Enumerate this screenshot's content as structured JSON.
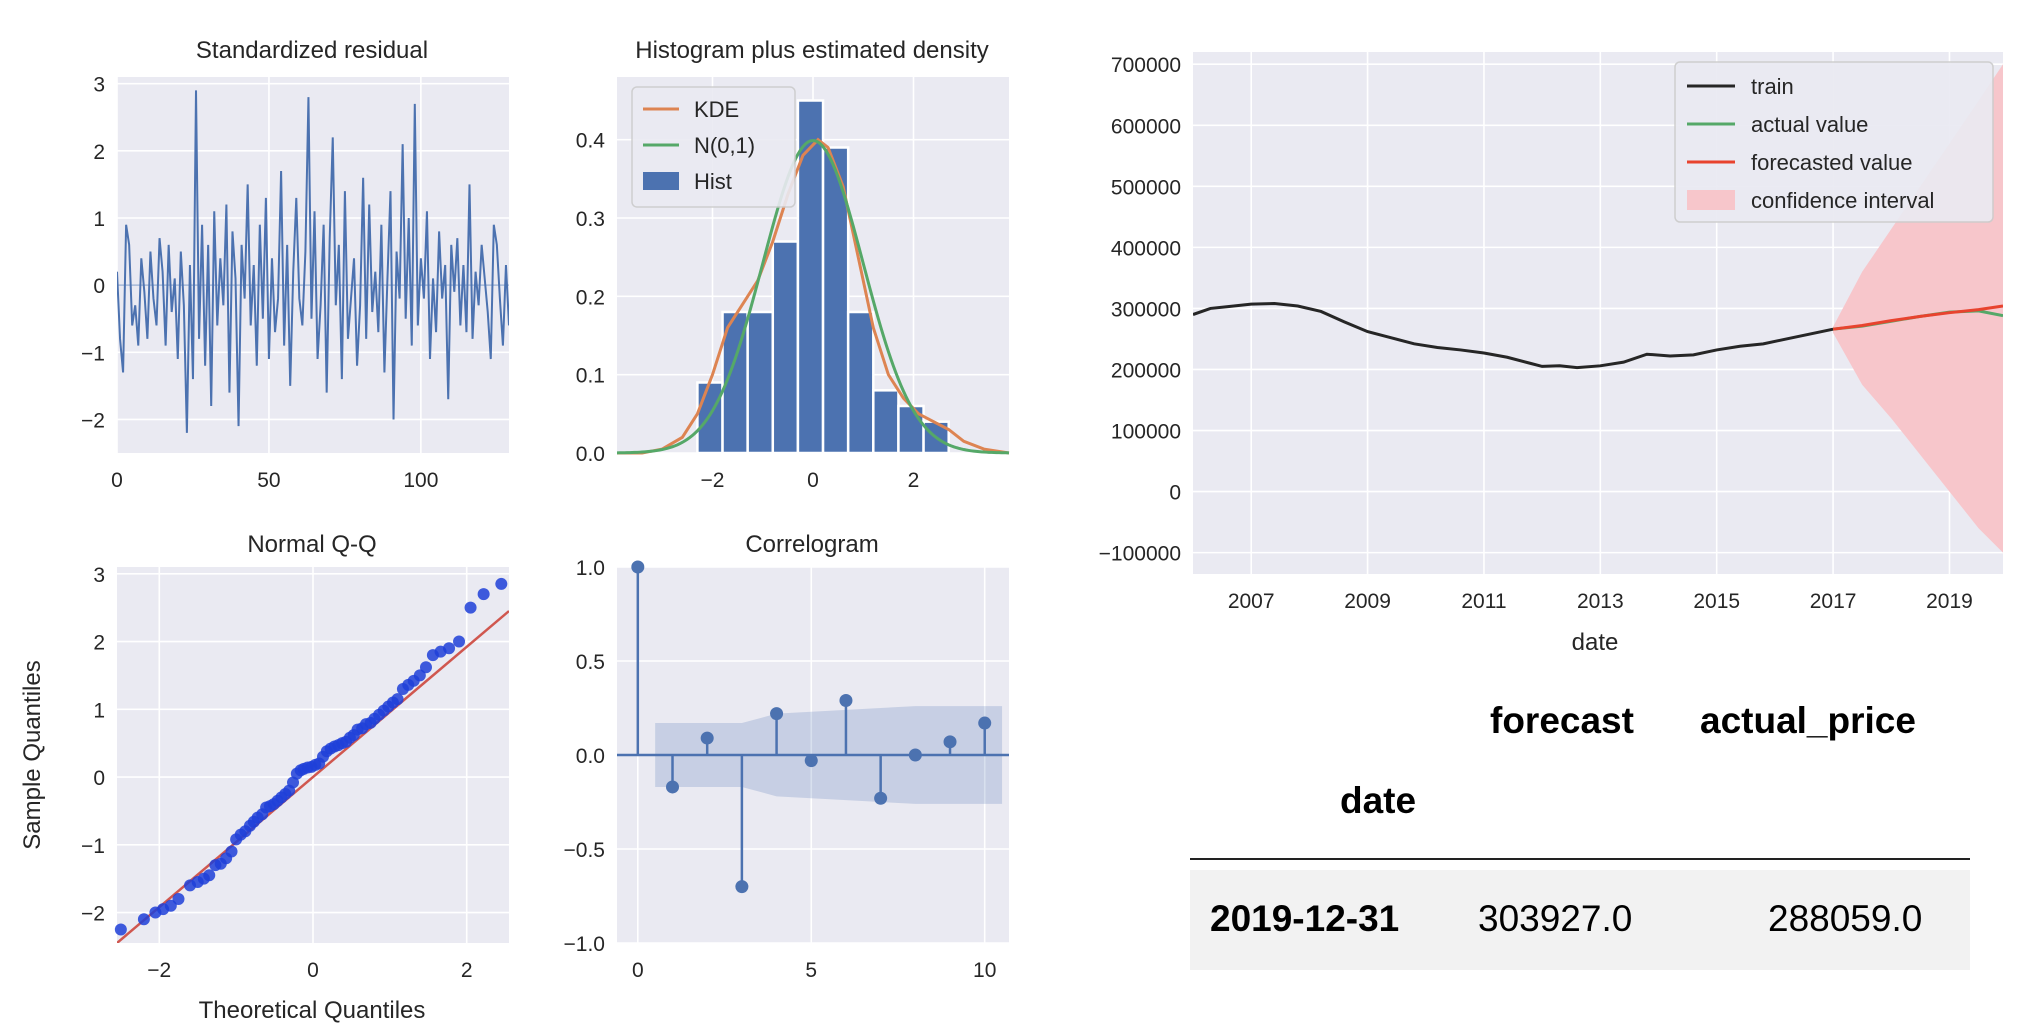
{
  "colors": {
    "panel_bg": "#eaeaf2",
    "grid": "#ffffff",
    "tick_text": "#262626",
    "blue": "#4c72b0",
    "orange": "#dd8452",
    "green": "#55a868",
    "red": "#c44e52",
    "train": "#262626",
    "actual": "#55a868",
    "forecast": "#e8432e",
    "ci": "#f7c6cb",
    "qq_points": "#1f3fd8",
    "qq_line": "#d0574f"
  },
  "chart_data": [
    {
      "id": "standardized-residual",
      "type": "line",
      "title": "Standardized residual",
      "xlim": [
        0,
        129
      ],
      "ylim": [
        -2.5,
        3.1
      ],
      "xticks": [
        "0",
        "50",
        "100"
      ],
      "yticks": [
        "−2",
        "−1",
        "0",
        "1",
        "2",
        "3"
      ],
      "series": [
        {
          "x": [
            0,
            1,
            2,
            3,
            4,
            5,
            6,
            7,
            8,
            9,
            10,
            11,
            12,
            13,
            14,
            15,
            16,
            17,
            18,
            19,
            20,
            21,
            22,
            23,
            24,
            25,
            26,
            27,
            28,
            29,
            30,
            31,
            32,
            33,
            34,
            35,
            36,
            37,
            38,
            39,
            40,
            41,
            42,
            43,
            44,
            45,
            46,
            47,
            48,
            49,
            50,
            51,
            52,
            53,
            54,
            55,
            56,
            57,
            58,
            59,
            60,
            61,
            62,
            63,
            64,
            65,
            66,
            67,
            68,
            69,
            70,
            71,
            72,
            73,
            74,
            75,
            76,
            77,
            78,
            79,
            80,
            81,
            82,
            83,
            84,
            85,
            86,
            87,
            88,
            89,
            90,
            91,
            92,
            93,
            94,
            95,
            96,
            97,
            98,
            99,
            100,
            101,
            102,
            103,
            104,
            105,
            106,
            107,
            108,
            109,
            110,
            111,
            112,
            113,
            114,
            115,
            116,
            117,
            118,
            119,
            120,
            121,
            122,
            123,
            124,
            125,
            126,
            127,
            128,
            129
          ],
          "y": [
            0.2,
            -0.8,
            -1.3,
            0.9,
            0.6,
            -0.6,
            -0.3,
            -0.9,
            0.4,
            -0.1,
            -0.8,
            0.5,
            -0.2,
            -0.6,
            0.7,
            0.2,
            -0.9,
            0.6,
            -0.4,
            0.1,
            -1.1,
            0.5,
            -0.3,
            -2.2,
            0.3,
            -1.4,
            2.9,
            -0.8,
            0.9,
            -1.2,
            0.6,
            -1.8,
            1.1,
            -0.6,
            0.4,
            -0.3,
            1.2,
            -1.6,
            0.8,
            0.1,
            -2.1,
            0.6,
            -0.2,
            1.5,
            -0.6,
            0.3,
            -1.2,
            0.9,
            -0.5,
            1.3,
            -1.1,
            0.4,
            -0.7,
            -0.2,
            1.7,
            -0.9,
            0.6,
            -1.5,
            0.2,
            1.3,
            -0.2,
            -0.6,
            0.5,
            2.8,
            -0.5,
            1.1,
            -1.1,
            -0.3,
            0.9,
            -1.6,
            0.7,
            2.2,
            -0.3,
            0.6,
            -1.4,
            1.4,
            -0.8,
            -0.2,
            0.4,
            -1.2,
            -0.3,
            1.6,
            -0.8,
            1.2,
            -0.4,
            0.2,
            -0.7,
            0.9,
            -1.3,
            0.1,
            1.4,
            -2.0,
            0.5,
            -0.2,
            2.1,
            -0.5,
            1.0,
            -0.9,
            2.7,
            -0.6,
            0.4,
            -0.2,
            1.1,
            -1.1,
            0.1,
            -0.7,
            0.8,
            -0.2,
            0.3,
            -1.7,
            0.6,
            -0.1,
            0.7,
            -0.6,
            0.3,
            -0.7,
            1.5,
            -0.8,
            0.2,
            -0.3,
            0.6,
            0.1,
            -0.4,
            -1.1,
            0.9,
            0.6,
            -0.2,
            -0.9,
            0.3,
            -0.6
          ]
        }
      ]
    },
    {
      "id": "histogram-density",
      "type": "bar",
      "title": "Histogram plus estimated density",
      "xlim": [
        -3.9,
        3.9
      ],
      "ylim": [
        0,
        0.48
      ],
      "xticks": [
        "−2",
        "0",
        "2"
      ],
      "yticks": [
        "0.0",
        "0.1",
        "0.2",
        "0.3",
        "0.4"
      ],
      "bins": [
        {
          "x0": -2.3,
          "x1": -1.8,
          "value": 0.09
        },
        {
          "x0": -1.8,
          "x1": -1.3,
          "value": 0.18
        },
        {
          "x0": -1.3,
          "x1": -0.8,
          "value": 0.18
        },
        {
          "x0": -0.8,
          "x1": -0.3,
          "value": 0.27
        },
        {
          "x0": -0.3,
          "x1": 0.2,
          "value": 0.45
        },
        {
          "x0": 0.2,
          "x1": 0.7,
          "value": 0.39
        },
        {
          "x0": 0.7,
          "x1": 1.2,
          "value": 0.18
        },
        {
          "x0": 1.2,
          "x1": 1.7,
          "value": 0.08
        },
        {
          "x0": 1.7,
          "x1": 2.2,
          "value": 0.06
        },
        {
          "x0": 2.2,
          "x1": 2.7,
          "value": 0.04
        }
      ],
      "kde": {
        "x": [
          -3.9,
          -3.4,
          -3.0,
          -2.6,
          -2.3,
          -2.0,
          -1.7,
          -1.4,
          -1.1,
          -0.8,
          -0.5,
          -0.2,
          0.1,
          0.3,
          0.6,
          0.9,
          1.2,
          1.5,
          1.8,
          2.1,
          2.4,
          2.7,
          3.0,
          3.4,
          3.9
        ],
        "y": [
          0.0,
          0.0,
          0.005,
          0.02,
          0.05,
          0.1,
          0.16,
          0.19,
          0.22,
          0.27,
          0.33,
          0.38,
          0.4,
          0.39,
          0.34,
          0.25,
          0.16,
          0.1,
          0.07,
          0.05,
          0.04,
          0.03,
          0.015,
          0.005,
          0.0
        ]
      },
      "normal": {
        "mean": 0,
        "sd": 1
      },
      "legend": [
        {
          "label": "KDE",
          "kind": "line",
          "color": "#dd8452"
        },
        {
          "label": "N(0,1)",
          "kind": "line",
          "color": "#55a868"
        },
        {
          "label": "Hist",
          "kind": "patch",
          "color": "#4c72b0"
        }
      ]
    },
    {
      "id": "normal-qq",
      "type": "scatter",
      "title": "Normal Q-Q",
      "xlabel": "Theoretical Quantiles",
      "ylabel": "Sample Quantiles",
      "xlim": [
        -2.55,
        2.55
      ],
      "ylim": [
        -2.45,
        3.1
      ],
      "xticks": [
        "−2",
        "0",
        "2"
      ],
      "yticks": [
        "−2",
        "−1",
        "0",
        "1",
        "2",
        "3"
      ],
      "line": {
        "x": [
          -2.55,
          2.55
        ],
        "y": [
          -2.45,
          2.45
        ]
      },
      "points_x": [
        -2.5,
        -2.2,
        -2.05,
        -1.95,
        -1.85,
        -1.75,
        -1.6,
        -1.5,
        -1.42,
        -1.35,
        -1.27,
        -1.2,
        -1.13,
        -1.06,
        -1.0,
        -0.94,
        -0.88,
        -0.82,
        -0.77,
        -0.72,
        -0.66,
        -0.61,
        -0.56,
        -0.51,
        -0.46,
        -0.41,
        -0.36,
        -0.31,
        -0.26,
        -0.21,
        -0.16,
        -0.12,
        -0.07,
        -0.02,
        0.03,
        0.08,
        0.13,
        0.18,
        0.23,
        0.28,
        0.33,
        0.38,
        0.43,
        0.48,
        0.53,
        0.58,
        0.64,
        0.69,
        0.75,
        0.8,
        0.86,
        0.92,
        0.98,
        1.04,
        1.1,
        1.17,
        1.24,
        1.31,
        1.39,
        1.47,
        1.56,
        1.66,
        1.77,
        1.9,
        2.05,
        2.22,
        2.45
      ],
      "points_y": [
        -2.25,
        -2.1,
        -2.0,
        -1.95,
        -1.9,
        -1.8,
        -1.6,
        -1.55,
        -1.5,
        -1.45,
        -1.3,
        -1.28,
        -1.2,
        -1.1,
        -0.92,
        -0.85,
        -0.8,
        -0.72,
        -0.66,
        -0.6,
        -0.55,
        -0.45,
        -0.43,
        -0.4,
        -0.35,
        -0.3,
        -0.25,
        -0.2,
        -0.08,
        0.05,
        0.1,
        0.12,
        0.14,
        0.15,
        0.18,
        0.2,
        0.3,
        0.38,
        0.42,
        0.45,
        0.47,
        0.5,
        0.52,
        0.58,
        0.62,
        0.7,
        0.72,
        0.78,
        0.8,
        0.86,
        0.92,
        0.98,
        1.04,
        1.1,
        1.15,
        1.3,
        1.36,
        1.42,
        1.5,
        1.62,
        1.8,
        1.85,
        1.9,
        2.0,
        2.5,
        2.7,
        2.85
      ]
    },
    {
      "id": "correlogram",
      "type": "bar",
      "title": "Correlogram",
      "xlim": [
        -0.6,
        10.7
      ],
      "ylim": [
        -1.0,
        1.0
      ],
      "xticks": [
        "0",
        "5",
        "10"
      ],
      "yticks": [
        "−1.0",
        "−0.5",
        "0.0",
        "0.5",
        "1.0"
      ],
      "lags": [
        0,
        1,
        2,
        3,
        4,
        5,
        6,
        7,
        8,
        9,
        10
      ],
      "values": [
        1.0,
        -0.17,
        0.09,
        -0.7,
        0.22,
        -0.03,
        0.29,
        -0.23,
        0.0,
        0.07,
        0.17
      ],
      "band": {
        "lags": [
          0.5,
          1,
          2,
          3,
          4,
          5,
          6,
          7,
          8,
          9,
          10,
          10.5
        ],
        "upper": [
          0.17,
          0.17,
          0.17,
          0.17,
          0.22,
          0.23,
          0.24,
          0.25,
          0.26,
          0.26,
          0.26,
          0.26
        ]
      }
    },
    {
      "id": "price-forecast",
      "type": "line",
      "xlabel": "date",
      "xlim": [
        2006.0,
        2019.92
      ],
      "ylim": [
        -135000,
        720000
      ],
      "xticks": [
        "2007",
        "2009",
        "2011",
        "2013",
        "2015",
        "2017",
        "2019"
      ],
      "yticks": [
        "−100000",
        "0",
        "100000",
        "200000",
        "300000",
        "400000",
        "500000",
        "600000",
        "700000"
      ],
      "legend_position": "top-right",
      "series": [
        {
          "name": "train",
          "color": "#262626",
          "x": [
            2006.0,
            2006.3,
            2006.6,
            2007.0,
            2007.4,
            2007.8,
            2008.2,
            2008.6,
            2009.0,
            2009.4,
            2009.8,
            2010.2,
            2010.6,
            2011.0,
            2011.4,
            2011.8,
            2012.0,
            2012.3,
            2012.6,
            2013.0,
            2013.4,
            2013.8,
            2014.2,
            2014.6,
            2015.0,
            2015.4,
            2015.8,
            2016.2,
            2016.6,
            2017.0
          ],
          "y": [
            290000,
            300000,
            303000,
            307000,
            308000,
            304000,
            295000,
            278000,
            262000,
            252000,
            242000,
            236000,
            232000,
            227000,
            220000,
            210000,
            205000,
            206000,
            203000,
            206000,
            212000,
            225000,
            222000,
            224000,
            232000,
            238000,
            242000,
            250000,
            258000,
            266000
          ]
        },
        {
          "name": "actual value",
          "color": "#55a868",
          "x": [
            2017.0,
            2017.5,
            2018.0,
            2018.5,
            2019.0,
            2019.5,
            2019.92
          ],
          "y": [
            266000,
            271000,
            279000,
            287000,
            294000,
            296000,
            288059
          ]
        },
        {
          "name": "forecasted value",
          "color": "#e8432e",
          "x": [
            2017.0,
            2017.5,
            2018.0,
            2018.5,
            2019.0,
            2019.5,
            2019.92
          ],
          "y": [
            266000,
            272000,
            280000,
            287000,
            293000,
            298000,
            303927
          ]
        }
      ],
      "confidence_interval": {
        "name": "confidence interval",
        "x": [
          2017.0,
          2017.5,
          2018.0,
          2018.5,
          2019.0,
          2019.5,
          2019.92
        ],
        "lower": [
          260000,
          175000,
          120000,
          60000,
          0,
          -60000,
          -100000
        ],
        "upper": [
          270000,
          360000,
          430000,
          500000,
          570000,
          640000,
          700000
        ]
      }
    }
  ],
  "table": {
    "columns": [
      "forecast",
      "actual_price"
    ],
    "index_name": "date",
    "rows": [
      {
        "index": "2019-12-31",
        "forecast": "303927.0",
        "actual_price": "288059.0"
      }
    ]
  }
}
